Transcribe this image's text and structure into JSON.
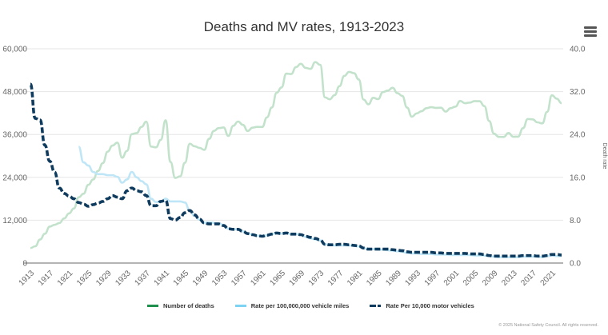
{
  "chart_data": {
    "type": "line",
    "title": "Deaths and MV rates, 1913-2023",
    "xlabel": "",
    "ylabel_left": "",
    "ylabel_right": "Death rate",
    "ylim_left": [
      0,
      60000
    ],
    "ylim_right": [
      0,
      40
    ],
    "left_ticks": [
      "0",
      "12,000",
      "24,000",
      "36,000",
      "48,000",
      "60,000"
    ],
    "right_ticks": [
      "0.0",
      "8.0",
      "16.0",
      "24.0",
      "32.0",
      "40.0"
    ],
    "x_start": 1913,
    "x_end": 2023,
    "x_ticks": [
      "1913",
      "1917",
      "1921",
      "1925",
      "1929",
      "1933",
      "1937",
      "1941",
      "1945",
      "1949",
      "1953",
      "1957",
      "1961",
      "1965",
      "1969",
      "1973",
      "1977",
      "1981",
      "1985",
      "1989",
      "1993",
      "1997",
      "2001",
      "2005",
      "2009",
      "2013",
      "2017",
      "2021"
    ],
    "grid": true,
    "legend_position": "bottom",
    "colors": {
      "deaths": "#c3e2cc",
      "miles": "#bfe6f6",
      "vehicles": "#0e3b5e",
      "legend_deaths": "#1f8f4e",
      "legend_miles": "#7fd3f2"
    },
    "series": [
      {
        "name": "Number of deaths",
        "axis": "left",
        "start_year": 1913,
        "values": [
          4200,
          4700,
          6600,
          8200,
          10200,
          10700,
          11200,
          12500,
          13900,
          15300,
          18400,
          19400,
          21900,
          23400,
          25800,
          28000,
          31200,
          32900,
          33700,
          29500,
          31400,
          36100,
          36400,
          38100,
          39600,
          32600,
          32400,
          34500,
          39969,
          28309,
          23823,
          24282,
          28076,
          33411,
          32697,
          32259,
          31701,
          34763,
          36996,
          37794,
          37955,
          35586,
          38426,
          39628,
          38702,
          36981,
          37910,
          38137,
          38091,
          40804,
          43564,
          47700,
          49163,
          53041,
          52924,
          54862,
          55791,
          54633,
          54381,
          56278,
          55511,
          46402,
          45853,
          47038,
          49510,
          52411,
          53524,
          53172,
          51385,
          45779,
          44452,
          46263,
          45901,
          47865,
          48290,
          49078,
          47575,
          46814,
          43536,
          40982,
          41893,
          42524,
          43363,
          43649,
          43458,
          43501,
          42401,
          43354,
          43788,
          45380,
          44757,
          44933,
          45343,
          45316,
          43945,
          39790,
          36216,
          35332,
          35303,
          36415,
          35369,
          35398,
          37757,
          40327,
          40231,
          39404,
          39107,
          42339,
          46980,
          46027,
          44762
        ]
      },
      {
        "name": "Rate per 100,000,000 vehicle miles",
        "axis": "right",
        "start_year": 1923,
        "values": [
          21.7,
          18.8,
          18.2,
          17.0,
          16.6,
          16.6,
          16.4,
          16.4,
          16.1,
          15.0,
          15.6,
          17.0,
          16.0,
          15.3,
          14.7,
          12.0,
          11.4,
          11.4,
          12.0,
          11.5,
          11.5,
          11.5,
          11.3,
          9.8,
          8.8,
          8.1,
          7.5,
          7.6,
          7.5,
          7.4,
          7.1,
          6.4,
          6.3,
          6.3,
          5.9,
          5.5,
          5.3,
          5.1,
          5.0,
          5.2,
          5.4,
          5.6,
          5.5,
          5.6,
          5.4,
          5.4,
          5.3,
          4.9,
          4.6,
          4.4,
          4.2,
          3.5,
          3.4,
          3.3,
          3.3,
          3.3,
          3.3,
          3.2,
          3.1,
          2.8,
          2.6,
          2.6,
          2.5,
          2.5,
          2.4,
          2.3,
          2.2,
          2.1,
          1.9,
          1.8,
          1.8,
          1.7,
          1.7,
          1.7,
          1.6,
          1.6,
          1.6,
          1.5,
          1.5,
          1.5,
          1.5,
          1.5,
          1.4,
          1.4,
          1.4,
          1.3,
          1.2,
          1.1,
          1.1,
          1.1,
          1.1,
          1.1,
          1.2,
          1.2,
          1.2,
          1.2,
          1.1,
          1.3,
          1.4,
          1.3,
          1.3
        ]
      },
      {
        "name": "Rate Per 10,000 motor vehicles",
        "axis": "right",
        "start_year": 1913,
        "values": [
          33.4,
          27.0,
          26.7,
          22.0,
          19.0,
          17.0,
          14.0,
          13.0,
          12.5,
          12.0,
          11.3,
          11.0,
          10.6,
          10.9,
          11.2,
          11.5,
          12.0,
          12.6,
          12.3,
          12.0,
          13.5,
          14.0,
          13.5,
          13.3,
          12.6,
          10.7,
          10.7,
          11.5,
          11.7,
          8.3,
          8.0,
          8.5,
          9.4,
          9.8,
          9.0,
          8.2,
          7.5,
          7.3,
          7.3,
          7.3,
          7.0,
          6.4,
          6.3,
          6.3,
          5.9,
          5.5,
          5.3,
          5.1,
          5.0,
          5.2,
          5.4,
          5.6,
          5.5,
          5.6,
          5.4,
          5.4,
          5.3,
          5.0,
          4.8,
          4.6,
          4.3,
          3.5,
          3.4,
          3.4,
          3.5,
          3.5,
          3.4,
          3.3,
          3.2,
          2.8,
          2.6,
          2.6,
          2.6,
          2.6,
          2.6,
          2.5,
          2.4,
          2.3,
          2.1,
          2.0,
          2.0,
          2.0,
          2.0,
          2.0,
          1.9,
          1.9,
          1.8,
          1.8,
          1.8,
          1.8,
          1.8,
          1.7,
          1.7,
          1.7,
          1.6,
          1.4,
          1.3,
          1.3,
          1.3,
          1.3,
          1.3,
          1.3,
          1.4,
          1.4,
          1.4,
          1.3,
          1.3,
          1.4,
          1.6,
          1.6,
          1.5
        ]
      }
    ]
  },
  "footer": {
    "copyright": "© 2025 National Safety Council. All rights reserved."
  }
}
